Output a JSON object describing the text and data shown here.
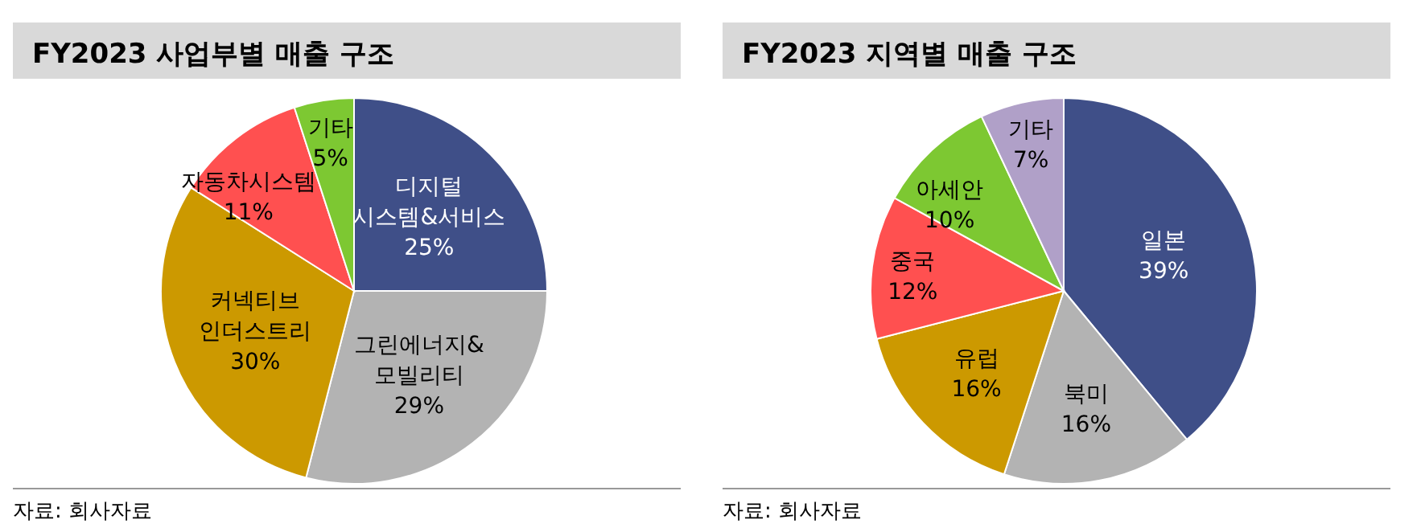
{
  "chart_data": [
    {
      "type": "pie",
      "title": "FY2023 사업부별 매출 구조",
      "categories": [
        "디지털\n시스템&서비스",
        "그린에너지&\n모빌리티",
        "커넥티브\n인더스트리",
        "자동차시스템",
        "기타"
      ],
      "values": [
        25,
        29,
        30,
        11,
        5
      ],
      "data_labels": true,
      "colors": [
        "#3f4f88",
        "#b3b3b3",
        "#cc9900",
        "#ff5050",
        "#7dc832"
      ],
      "value_labels": [
        "25%",
        "29%",
        "30%",
        "11%",
        "5%"
      ],
      "annotations": [
        "자료: 회사자료"
      ]
    },
    {
      "type": "pie",
      "title": "FY2023 지역별 매출 구조",
      "categories": [
        "일본",
        "북미",
        "유럽",
        "중국",
        "아세안",
        "기타"
      ],
      "values": [
        39,
        16,
        16,
        12,
        10,
        7
      ],
      "data_labels": true,
      "colors": [
        "#3f4f88",
        "#b3b3b3",
        "#cc9900",
        "#ff5050",
        "#7dc832",
        "#b0a0c8"
      ],
      "value_labels": [
        "39%",
        "16%",
        "16%",
        "12%",
        "10%",
        "7%"
      ],
      "annotations": [
        "자료: 회사자료"
      ]
    }
  ]
}
